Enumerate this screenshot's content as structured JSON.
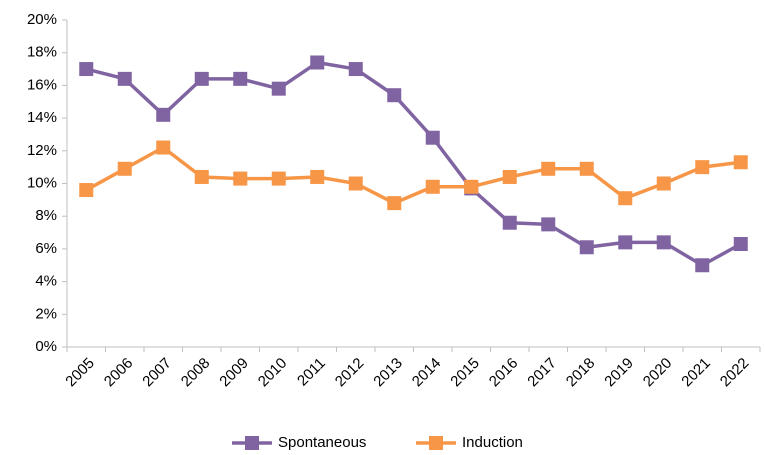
{
  "chart_data": {
    "type": "line",
    "categories": [
      "2005",
      "2006",
      "2007",
      "2008",
      "2009",
      "2010",
      "2011",
      "2012",
      "2013",
      "2014",
      "2015",
      "2016",
      "2017",
      "2018",
      "2019",
      "2020",
      "2021",
      "2022"
    ],
    "series": [
      {
        "name": "Spontaneous",
        "color": "#8064a2",
        "values": [
          17.0,
          16.4,
          14.2,
          16.4,
          16.4,
          15.8,
          17.4,
          17.0,
          15.4,
          12.8,
          9.7,
          7.6,
          7.5,
          6.1,
          6.4,
          6.4,
          5.0,
          6.3
        ]
      },
      {
        "name": "Induction",
        "color": "#f79646",
        "values": [
          9.6,
          10.9,
          12.2,
          10.4,
          10.3,
          10.3,
          10.4,
          10.0,
          8.8,
          9.8,
          9.8,
          10.4,
          10.9,
          10.9,
          9.1,
          10.0,
          11.0,
          11.3
        ]
      }
    ],
    "ylim": [
      0,
      20
    ],
    "yticks": [
      {
        "value": 0,
        "label": "0%"
      },
      {
        "value": 2,
        "label": "2%"
      },
      {
        "value": 4,
        "label": "4%"
      },
      {
        "value": 6,
        "label": "6%"
      },
      {
        "value": 8,
        "label": "8%"
      },
      {
        "value": 10,
        "label": "10%"
      },
      {
        "value": 12,
        "label": "12%"
      },
      {
        "value": 14,
        "label": "14%"
      },
      {
        "value": 16,
        "label": "16%"
      },
      {
        "value": 18,
        "label": "18%"
      },
      {
        "value": 20,
        "label": "20%"
      }
    ],
    "grid": false,
    "legend": "bottom"
  }
}
